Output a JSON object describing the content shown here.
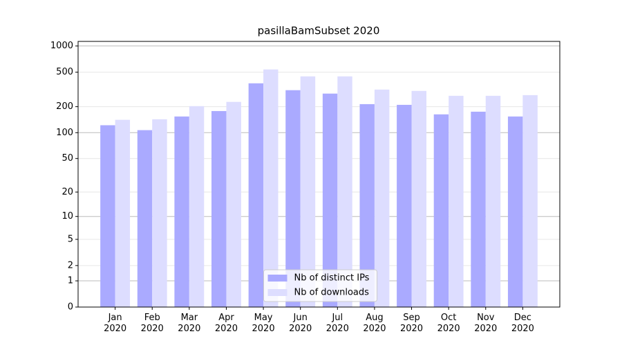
{
  "chart_data": {
    "type": "bar",
    "title": "pasillaBamSubset 2020",
    "categories": [
      "Jan\n2020",
      "Feb\n2020",
      "Mar\n2020",
      "Apr\n2020",
      "May\n2020",
      "Jun\n2020",
      "Jul\n2020",
      "Aug\n2020",
      "Sep\n2020",
      "Oct\n2020",
      "Nov\n2020",
      "Dec\n2020"
    ],
    "series": [
      {
        "name": "Nb of distinct IPs",
        "color": "#aaaaff",
        "values": [
          122,
          107,
          154,
          178,
          372,
          310,
          283,
          214,
          210,
          163,
          175,
          154
        ]
      },
      {
        "name": "Nb of downloads",
        "color": "#ddddff",
        "values": [
          141,
          143,
          203,
          227,
          537,
          447,
          447,
          315,
          304,
          267,
          267,
          272
        ]
      }
    ],
    "yscale": "log1p",
    "ylim": [
      0,
      1130
    ],
    "yticks": [
      0,
      1,
      2,
      5,
      10,
      20,
      50,
      100,
      200,
      500,
      1000
    ],
    "grid": true,
    "legend": "lower center"
  }
}
